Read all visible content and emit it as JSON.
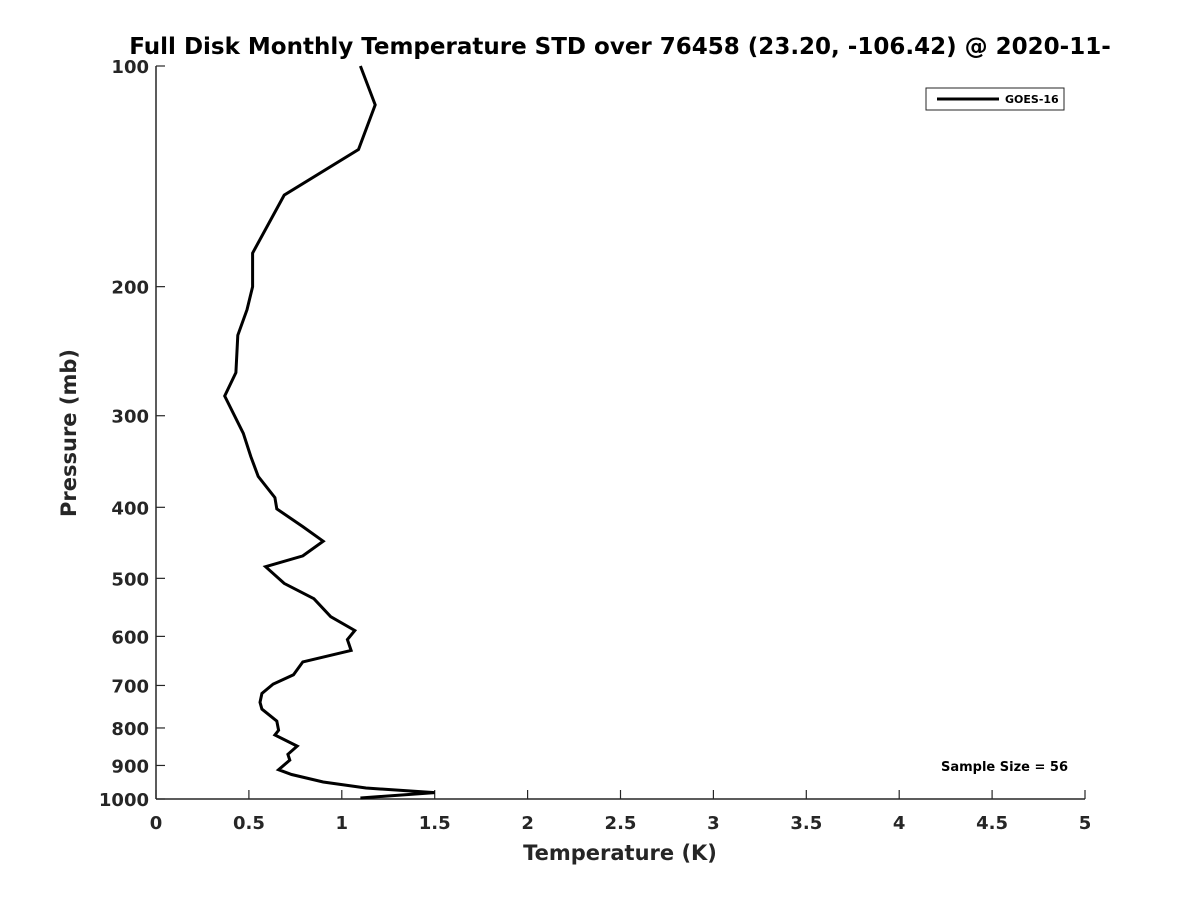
{
  "chart_data": {
    "type": "line",
    "title": "Full Disk Monthly Temperature STD over 76458 (23.20, -106.42) @ 2020-11-",
    "xlabel": "Temperature (K)",
    "ylabel": "Pressure (mb)",
    "xlim": [
      0,
      5
    ],
    "ylim": [
      100,
      1000
    ],
    "yscale": "log",
    "y_reversed": true,
    "grid": false,
    "legend_position": "top-right",
    "x_ticks": [
      "0",
      "0.5",
      "1",
      "1.5",
      "2",
      "2.5",
      "3",
      "3.5",
      "4",
      "4.5",
      "5"
    ],
    "y_ticks": [
      "100",
      "200",
      "300",
      "400",
      "500",
      "600",
      "700",
      "800",
      "900",
      "1000"
    ],
    "annotation": "Sample Size = 56",
    "series": [
      {
        "name": "GOES-16",
        "color": "#000000",
        "x": [
          1.1,
          1.18,
          1.09,
          0.69,
          0.52,
          0.52,
          0.49,
          0.44,
          0.43,
          0.37,
          0.47,
          0.51,
          0.55,
          0.64,
          0.65,
          0.79,
          0.9,
          0.79,
          0.59,
          0.69,
          0.85,
          0.94,
          1.07,
          1.03,
          1.05,
          0.79,
          0.74,
          0.63,
          0.57,
          0.56,
          0.57,
          0.65,
          0.66,
          0.64,
          0.76,
          0.71,
          0.72,
          0.66,
          0.73,
          0.9,
          1.13,
          1.5,
          1.1
        ],
        "y": [
          100,
          113,
          130,
          150,
          180,
          200,
          215,
          233,
          262,
          282,
          317,
          341,
          363,
          388,
          402,
          425,
          445,
          466,
          482,
          508,
          533,
          564,
          589,
          606,
          627,
          650,
          677,
          697,
          718,
          738,
          754,
          783,
          806,
          818,
          847,
          869,
          885,
          912,
          926,
          948,
          966,
          980,
          997
        ]
      }
    ]
  }
}
